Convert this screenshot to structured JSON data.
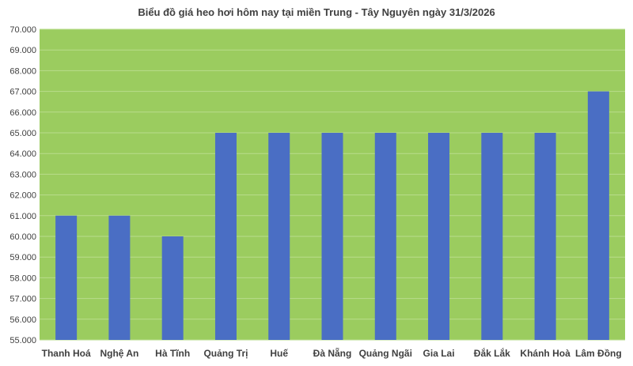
{
  "chart_data": {
    "type": "bar",
    "title": "Biểu đồ giá heo hơi hôm nay tại miền Trung - Tây Nguyên ngày 31/3/2026",
    "categories": [
      "Thanh Hoá",
      "Nghệ An",
      "Hà Tĩnh",
      "Quảng Trị",
      "Huế",
      "Đà Nẵng",
      "Quảng Ngãi",
      "Gia Lai",
      "Đắk Lắk",
      "Khánh Hoà",
      "Lâm Đồng"
    ],
    "values": [
      61000,
      61000,
      60000,
      65000,
      65000,
      65000,
      65000,
      65000,
      65000,
      65000,
      67000
    ],
    "xlabel": "",
    "ylabel": "",
    "ylim": [
      55000,
      70000
    ],
    "y_ticks": [
      "55.000",
      "56.000",
      "57.000",
      "58.000",
      "59.000",
      "60.000",
      "61.000",
      "62.000",
      "63.000",
      "64.000",
      "65.000",
      "66.000",
      "67.000",
      "68.000",
      "69.000",
      "70.000"
    ],
    "grid": true,
    "legend": "none",
    "colors": {
      "plot_background": "#9BCC5F",
      "bar": "#4A6EC4",
      "grid": "#B9DC8C"
    }
  }
}
